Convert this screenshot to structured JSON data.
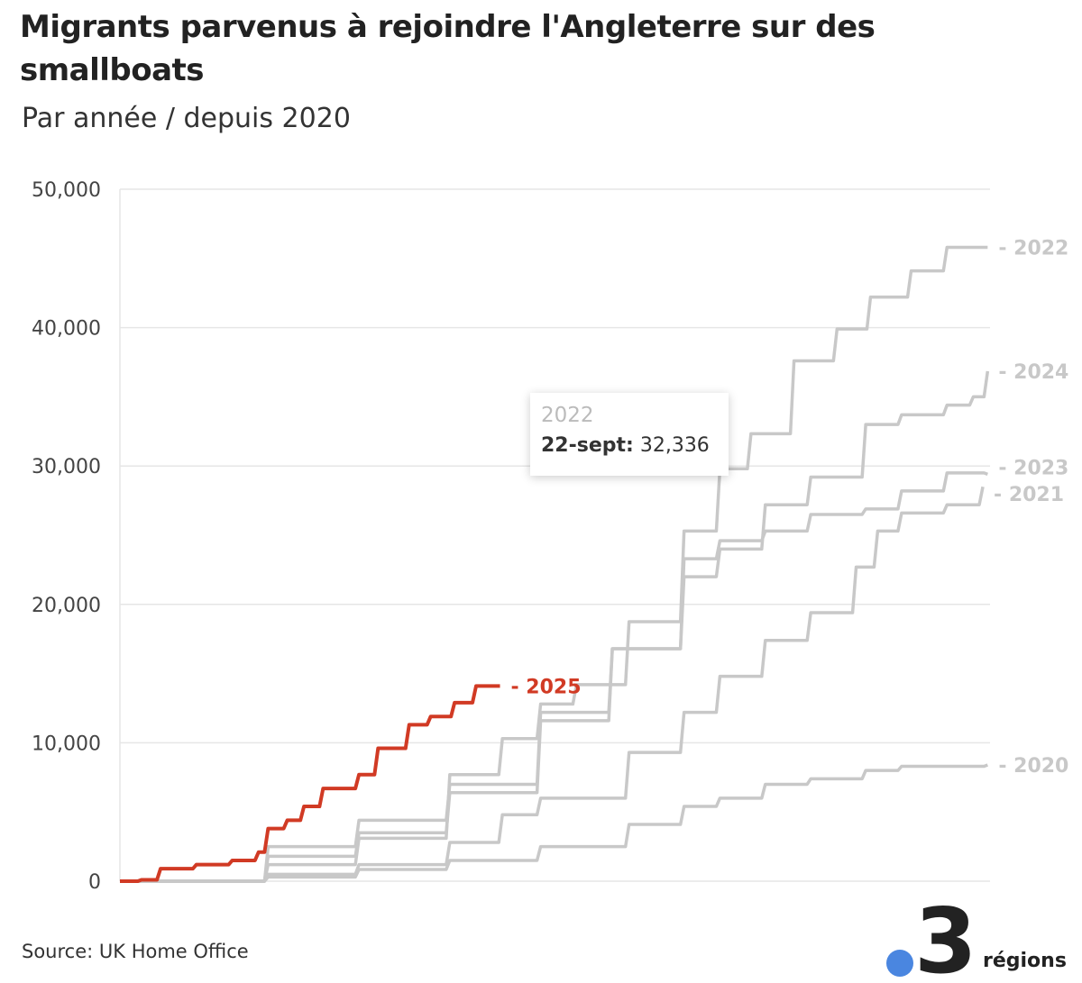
{
  "title": "Migrants parvenus à rejoindre l'Angleterre sur des smallboats",
  "subtitle": "Par année / depuis 2020",
  "source": "Source: UK Home Office",
  "logo": {
    "text": "3",
    "word": "régions",
    "dot_color": "#4a86e0"
  },
  "tooltip": {
    "series": "2022",
    "date_label": "22-sept:",
    "value": "32,336"
  },
  "chart_data": {
    "type": "line",
    "title": "Migrants parvenus à rejoindre l'Angleterre sur des smallboats",
    "subtitle": "Par année / depuis 2020",
    "xlabel": "",
    "ylabel": "",
    "x_unit": "day of year",
    "xlim": [
      1,
      365
    ],
    "ylim": [
      0,
      50000
    ],
    "yticks": [
      0,
      10000,
      20000,
      30000,
      40000,
      50000
    ],
    "ytick_labels": [
      "0",
      "10,000",
      "20,000",
      "30,000",
      "40,000",
      "50,000"
    ],
    "grid": "horizontal",
    "series": [
      {
        "name": "2020",
        "color": "#c8c8c8",
        "x": [
          1,
          63,
          101,
          139,
          177,
          214,
          237,
          252,
          271,
          290,
          313,
          328,
          364
        ],
        "y": [
          0,
          300,
          850,
          1500,
          2500,
          4100,
          5400,
          6000,
          7000,
          7400,
          8000,
          8300,
          8400
        ]
      },
      {
        "name": "2021",
        "color": "#c8c8c8",
        "x": [
          1,
          63,
          101,
          139,
          161,
          177,
          214,
          237,
          252,
          271,
          290,
          309,
          318,
          328,
          347,
          362
        ],
        "y": [
          0,
          500,
          1200,
          2800,
          4800,
          6000,
          9300,
          12200,
          14800,
          17400,
          19400,
          22700,
          25300,
          26600,
          27200,
          28500
        ]
      },
      {
        "name": "2023",
        "color": "#c8c8c8",
        "x": [
          1,
          63,
          101,
          139,
          177,
          207,
          237,
          252,
          271,
          290,
          313,
          328,
          347,
          364
        ],
        "y": [
          0,
          1800,
          3500,
          6400,
          11600,
          16800,
          23300,
          24600,
          25300,
          26500,
          26900,
          28200,
          29500,
          29400
        ]
      },
      {
        "name": "2024",
        "color": "#c8c8c8",
        "x": [
          1,
          63,
          101,
          139,
          177,
          207,
          237,
          252,
          271,
          290,
          313,
          328,
          347,
          358,
          364
        ],
        "y": [
          0,
          2500,
          4400,
          7000,
          12200,
          16800,
          22000,
          24000,
          27200,
          29200,
          33000,
          33700,
          34400,
          35000,
          36850
        ]
      },
      {
        "name": "2022",
        "color": "#c8c8c8",
        "x": [
          1,
          63,
          101,
          139,
          161,
          177,
          192,
          214,
          237,
          252,
          265,
          283,
          301,
          315,
          332,
          347,
          364
        ],
        "y": [
          0,
          1200,
          3100,
          7700,
          10300,
          12800,
          14200,
          18750,
          25300,
          29800,
          32336,
          37600,
          39900,
          42200,
          44100,
          45800,
          45800
        ]
      },
      {
        "name": "2025",
        "color": "#d13a24",
        "x": [
          1,
          10,
          18,
          33,
          48,
          59,
          63,
          71,
          78,
          86,
          101,
          109,
          122,
          131,
          141,
          150,
          160
        ],
        "y": [
          0,
          100,
          900,
          1200,
          1500,
          2100,
          3800,
          4400,
          5400,
          6700,
          7700,
          9600,
          11300,
          11900,
          12900,
          14100,
          14100
        ]
      }
    ]
  }
}
